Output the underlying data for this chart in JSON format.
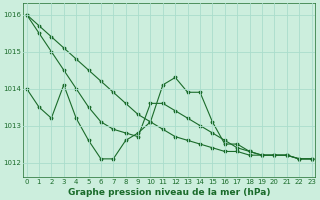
{
  "background_color": "#cceedd",
  "grid_color": "#aaddcc",
  "line_color": "#1a6b2a",
  "series": {
    "line1_smooth": [
      1016.0,
      1015.7,
      1015.4,
      1015.1,
      1014.8,
      1014.5,
      1014.2,
      1013.9,
      1013.6,
      1013.3,
      1013.1,
      1012.9,
      1012.7,
      1012.6,
      1012.5,
      1012.4,
      1012.3,
      1012.3,
      1012.2,
      1012.2,
      1012.2,
      1012.2,
      1012.1,
      1012.1
    ],
    "line2_volatile": [
      1014.0,
      1013.5,
      1013.2,
      1014.1,
      1013.2,
      1012.6,
      1012.1,
      1012.1,
      1012.6,
      1012.8,
      1013.1,
      1014.1,
      1014.3,
      1013.9,
      1013.9,
      1013.1,
      1012.5,
      1012.5,
      1012.3,
      1012.2,
      1012.2,
      1012.2,
      1012.1,
      1012.1
    ],
    "line3_mid": [
      1016.0,
      1015.5,
      1015.0,
      1014.5,
      1014.0,
      1013.5,
      1013.1,
      1012.9,
      1012.8,
      1012.7,
      1013.6,
      1013.6,
      1013.4,
      1013.2,
      1013.0,
      1012.8,
      1012.6,
      1012.4,
      1012.3,
      1012.2,
      1012.2,
      1012.2,
      1012.1,
      1012.1
    ]
  },
  "x_values": [
    0,
    1,
    2,
    3,
    4,
    5,
    6,
    7,
    8,
    9,
    10,
    11,
    12,
    13,
    14,
    15,
    16,
    17,
    18,
    19,
    20,
    21,
    22,
    23
  ],
  "xlim": [
    -0.3,
    23.3
  ],
  "ylim": [
    1011.6,
    1016.3
  ],
  "yticks": [
    1012,
    1013,
    1014,
    1015,
    1016
  ],
  "xlabel": "Graphe pression niveau de la mer (hPa)",
  "xlabel_fontsize": 6.5,
  "tick_fontsize": 5
}
